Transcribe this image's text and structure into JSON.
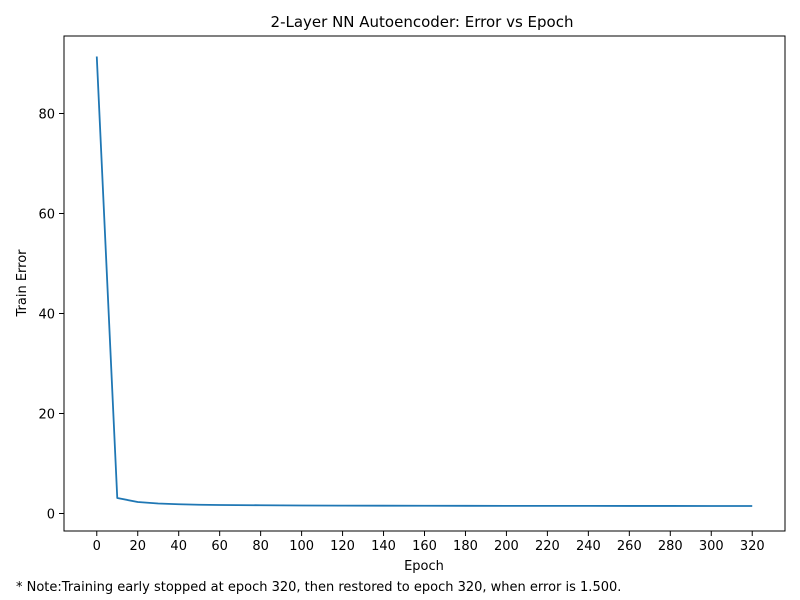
{
  "chart_data": {
    "type": "line",
    "title": "2-Layer NN Autoencoder: Error vs Epoch",
    "xlabel": "Epoch",
    "ylabel": "Train Error",
    "xlim": [
      -16,
      336
    ],
    "ylim": [
      -3.5,
      95.5
    ],
    "xticks": [
      0,
      20,
      40,
      60,
      80,
      100,
      120,
      140,
      160,
      180,
      200,
      220,
      240,
      260,
      280,
      300,
      320
    ],
    "yticks": [
      0,
      20,
      40,
      60,
      80
    ],
    "grid": false,
    "legend": "none",
    "series": [
      {
        "color": "#1f77b4",
        "x": [
          0,
          10,
          20,
          30,
          40,
          50,
          60,
          80,
          100,
          120,
          140,
          160,
          180,
          200,
          220,
          240,
          260,
          280,
          300,
          320
        ],
        "y": [
          91.4,
          3.1,
          2.3,
          2.0,
          1.85,
          1.75,
          1.7,
          1.65,
          1.6,
          1.58,
          1.56,
          1.55,
          1.54,
          1.53,
          1.52,
          1.52,
          1.51,
          1.51,
          1.5,
          1.5
        ]
      }
    ]
  },
  "note": "* Note:Training early stopped at epoch 320, then restored to epoch 320, when error is 1.500."
}
